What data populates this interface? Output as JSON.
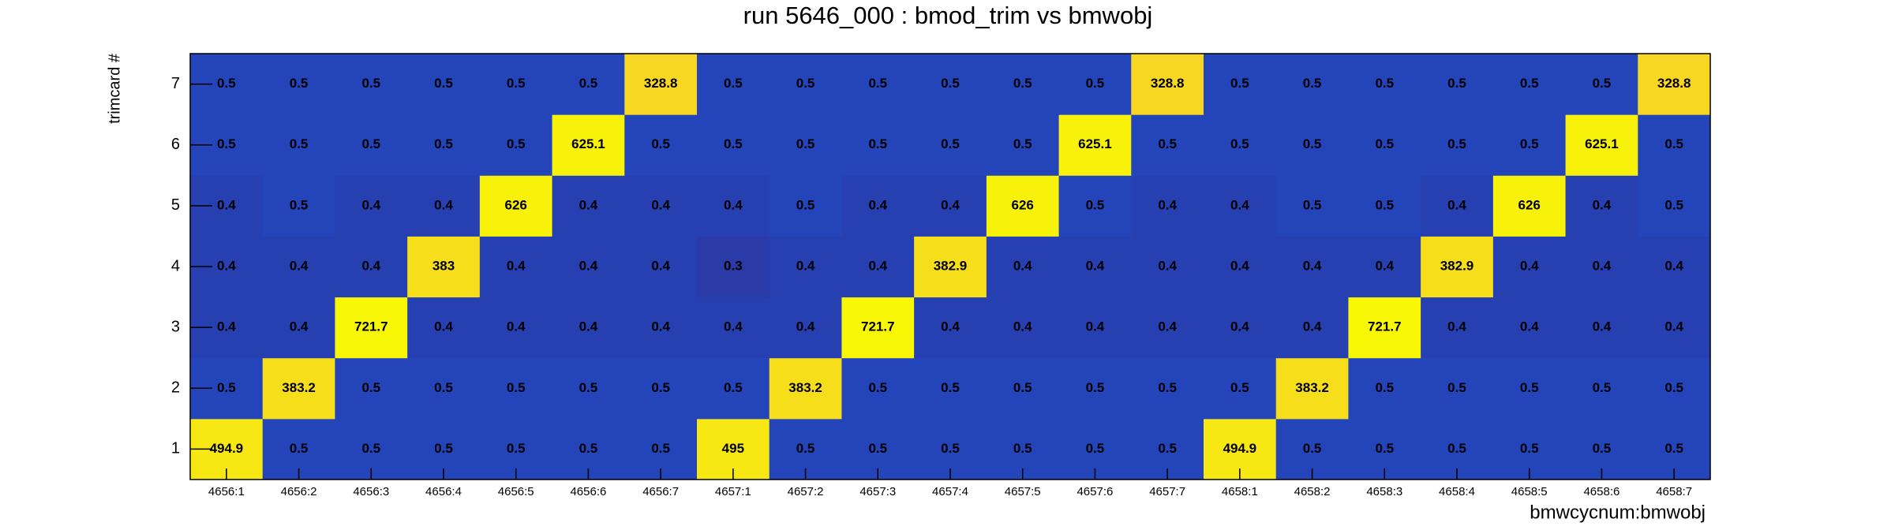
{
  "chart_data": {
    "type": "heatmap",
    "title": "run 5646_000 : bmod_trim vs bmwobj",
    "x_label": "bmwcycnum:bmwobj",
    "y_label": "trimcard #",
    "x": [
      "4656:1",
      "4656:2",
      "4656:3",
      "4656:4",
      "4656:5",
      "4656:6",
      "4656:7",
      "4657:1",
      "4657:2",
      "4657:3",
      "4657:4",
      "4657:5",
      "4657:6",
      "4657:7",
      "4658:1",
      "4658:2",
      "4658:3",
      "4658:4",
      "4658:5",
      "4658:6",
      "4658:7"
    ],
    "y_categories": [
      "1",
      "2",
      "3",
      "4",
      "5",
      "6",
      "7"
    ],
    "z": [
      [
        494.9,
        0.5,
        0.5,
        0.5,
        0.5,
        0.5,
        0.5,
        495.0,
        0.5,
        0.5,
        0.5,
        0.5,
        0.5,
        0.5,
        494.9,
        0.5,
        0.5,
        0.5,
        0.5,
        0.5,
        0.5
      ],
      [
        0.5,
        383.2,
        0.5,
        0.5,
        0.5,
        0.5,
        0.5,
        0.5,
        383.2,
        0.5,
        0.5,
        0.5,
        0.5,
        0.5,
        0.5,
        383.2,
        0.5,
        0.5,
        0.5,
        0.5,
        0.5
      ],
      [
        0.4,
        0.4,
        721.7,
        0.4,
        0.4,
        0.4,
        0.4,
        0.4,
        0.4,
        721.7,
        0.4,
        0.4,
        0.4,
        0.4,
        0.4,
        0.4,
        721.7,
        0.4,
        0.4,
        0.4,
        0.4
      ],
      [
        0.4,
        0.4,
        0.4,
        383.0,
        0.4,
        0.4,
        0.4,
        0.3,
        0.4,
        0.4,
        382.9,
        0.4,
        0.4,
        0.4,
        0.4,
        0.4,
        0.4,
        382.9,
        0.4,
        0.4,
        0.4
      ],
      [
        0.4,
        0.5,
        0.4,
        0.4,
        626.0,
        0.4,
        0.4,
        0.4,
        0.5,
        0.4,
        0.4,
        626.0,
        0.5,
        0.4,
        0.4,
        0.5,
        0.5,
        0.4,
        626.0,
        0.4,
        0.5
      ],
      [
        0.5,
        0.5,
        0.5,
        0.5,
        0.5,
        625.1,
        0.5,
        0.5,
        0.5,
        0.5,
        0.5,
        0.5,
        625.1,
        0.5,
        0.5,
        0.5,
        0.5,
        0.5,
        0.5,
        625.1,
        0.5
      ],
      [
        0.5,
        0.5,
        0.5,
        0.5,
        0.5,
        0.5,
        328.8,
        0.5,
        0.5,
        0.5,
        0.5,
        0.5,
        0.5,
        328.8,
        0.5,
        0.5,
        0.5,
        0.5,
        0.5,
        0.5,
        328.8
      ]
    ],
    "log_z": true,
    "palette": [
      "#2a3aa6",
      "#1a56d8",
      "#1f9ec8",
      "#58c070",
      "#d0c040",
      "#f6c232",
      "#f8f806"
    ]
  }
}
